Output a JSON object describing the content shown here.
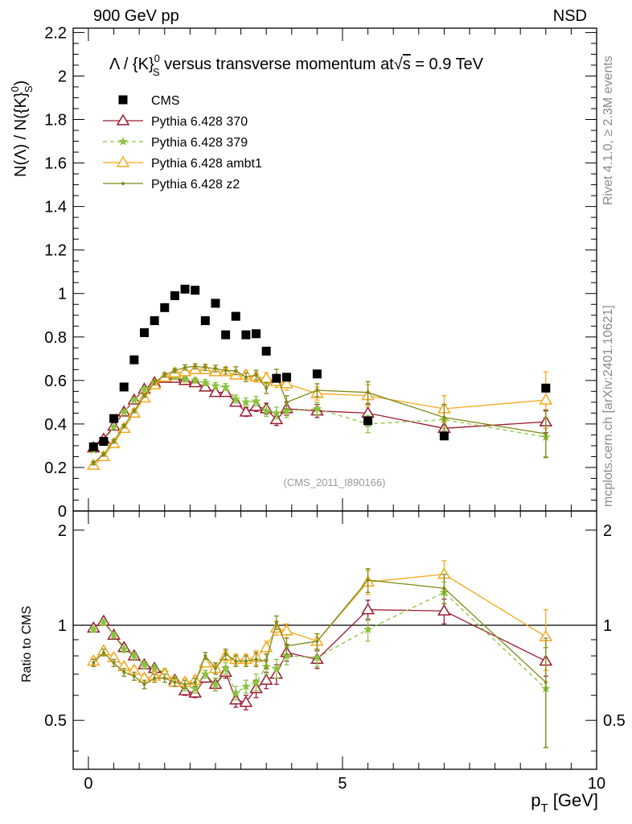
{
  "header": {
    "left": "900 GeV pp",
    "right": "NSD"
  },
  "side_labels": {
    "rivet": "Rivet 4.1.0, ≥ 2.3M events",
    "mcplots": "mcplots.cern.ch [arXiv:2401.10621]"
  },
  "chart_data": {
    "type": "scatter",
    "title": "Λ / {K}S0 versus transverse momentum at √s = 0.9 TeV",
    "title_parts": {
      "lead": "Λ / {K}",
      "sup": "0",
      "sub": "S",
      "mid": " versus transverse momentum at",
      "root": "s",
      "tail": " = 0.9 TeV"
    },
    "ylabel": "N(Λ) / N({K}S0)",
    "ylabel_parts": {
      "lead": "N(Λ)  /  N({K}",
      "sup": "0",
      "sub": "S",
      "tail": ")"
    },
    "xlabel": "pT [GeV]",
    "xlabel_parts": {
      "main": "p",
      "sub": "T",
      "unit": " [GeV]"
    },
    "watermark": "(CMS_2011_I890166)",
    "ratio_ylabel": "Ratio to CMS",
    "xlim": [
      -0.3,
      10
    ],
    "ylim": [
      0,
      2.22
    ],
    "ratio_ylim": [
      0.35,
      2.3
    ],
    "x_ticks": [
      0,
      5,
      10
    ],
    "y_ticks": [
      0,
      0.2,
      0.4,
      0.6,
      0.8,
      1,
      1.2,
      1.4,
      1.6,
      1.8,
      2,
      2.2
    ],
    "ratio_ticks": [
      0.5,
      1,
      2
    ],
    "x": [
      0.1,
      0.3,
      0.5,
      0.7,
      0.9,
      1.1,
      1.3,
      1.5,
      1.7,
      1.9,
      2.1,
      2.3,
      2.5,
      2.7,
      2.9,
      3.1,
      3.3,
      3.5,
      3.7,
      3.9,
      4.5,
      5.5,
      7.0,
      9.0
    ],
    "data": {
      "name": "CMS",
      "values": [
        0.295,
        0.32,
        0.425,
        0.57,
        0.695,
        0.82,
        0.875,
        0.935,
        0.99,
        1.02,
        1.015,
        0.875,
        0.955,
        0.81,
        0.895,
        0.81,
        0.815,
        0.735,
        0.61,
        0.615,
        0.63,
        0.415,
        0.345,
        0.565
      ]
    },
    "series": [
      {
        "name": "Pythia 6.428 370",
        "color": "#9b1b30",
        "marker": "triangle-open",
        "dash": "",
        "values": [
          0.29,
          0.33,
          0.39,
          0.455,
          0.51,
          0.56,
          0.59,
          0.61,
          0.61,
          0.6,
          0.59,
          0.57,
          0.545,
          0.545,
          0.5,
          0.455,
          0.48,
          0.47,
          0.42,
          0.47,
          0.46,
          0.45,
          0.38,
          0.41
        ],
        "errors": [
          0.008,
          0.008,
          0.008,
          0.008,
          0.008,
          0.008,
          0.01,
          0.01,
          0.01,
          0.012,
          0.012,
          0.014,
          0.015,
          0.016,
          0.018,
          0.02,
          0.022,
          0.025,
          0.027,
          0.03,
          0.03,
          0.04,
          0.04,
          0.05
        ],
        "ratio": [
          0.98,
          1.03,
          0.93,
          0.85,
          0.8,
          0.75,
          0.73,
          0.7,
          0.67,
          0.62,
          0.61,
          0.68,
          0.65,
          0.71,
          0.58,
          0.57,
          0.63,
          0.67,
          0.7,
          0.82,
          0.78,
          1.12,
          1.11,
          0.77
        ],
        "ratio_errors": [
          0.02,
          0.02,
          0.02,
          0.02,
          0.02,
          0.02,
          0.02,
          0.02,
          0.02,
          0.02,
          0.02,
          0.02,
          0.03,
          0.03,
          0.03,
          0.03,
          0.04,
          0.04,
          0.05,
          0.05,
          0.05,
          0.08,
          0.1,
          0.08
        ]
      },
      {
        "name": "Pythia 6.428 379",
        "color": "#8ac43f",
        "marker": "star",
        "dash": "5,4",
        "values": [
          0.28,
          0.32,
          0.385,
          0.455,
          0.51,
          0.56,
          0.59,
          0.61,
          0.615,
          0.605,
          0.6,
          0.59,
          0.575,
          0.57,
          0.515,
          0.5,
          0.505,
          0.46,
          0.45,
          0.46,
          0.47,
          0.4,
          0.42,
          0.34
        ],
        "errors": [
          0.008,
          0.008,
          0.008,
          0.008,
          0.008,
          0.008,
          0.01,
          0.01,
          0.01,
          0.012,
          0.012,
          0.014,
          0.015,
          0.016,
          0.018,
          0.02,
          0.022,
          0.025,
          0.027,
          0.03,
          0.03,
          0.04,
          0.04,
          0.09
        ],
        "ratio": [
          0.97,
          1.02,
          0.93,
          0.84,
          0.8,
          0.75,
          0.73,
          0.71,
          0.67,
          0.64,
          0.63,
          0.7,
          0.65,
          0.73,
          0.61,
          0.64,
          0.66,
          0.74,
          0.73,
          0.8,
          0.79,
          0.97,
          1.27,
          0.63
        ],
        "ratio_errors": [
          0.02,
          0.02,
          0.02,
          0.02,
          0.02,
          0.02,
          0.02,
          0.02,
          0.02,
          0.02,
          0.02,
          0.02,
          0.03,
          0.03,
          0.03,
          0.03,
          0.04,
          0.04,
          0.05,
          0.05,
          0.05,
          0.08,
          0.1,
          0.22
        ]
      },
      {
        "name": "Pythia 6.428 ambt1",
        "color": "#f5a81c",
        "marker": "triangle-open",
        "dash": "",
        "values": [
          0.21,
          0.25,
          0.31,
          0.38,
          0.45,
          0.52,
          0.58,
          0.615,
          0.635,
          0.64,
          0.65,
          0.65,
          0.64,
          0.64,
          0.625,
          0.625,
          0.615,
          0.61,
          0.595,
          0.585,
          0.54,
          0.53,
          0.47,
          0.51
        ],
        "errors": [
          0.008,
          0.008,
          0.008,
          0.008,
          0.008,
          0.008,
          0.01,
          0.01,
          0.01,
          0.012,
          0.012,
          0.014,
          0.015,
          0.016,
          0.018,
          0.02,
          0.022,
          0.025,
          0.027,
          0.03,
          0.03,
          0.05,
          0.06,
          0.13
        ],
        "ratio": [
          0.77,
          0.83,
          0.79,
          0.74,
          0.72,
          0.68,
          0.69,
          0.7,
          0.66,
          0.66,
          0.67,
          0.76,
          0.73,
          0.8,
          0.78,
          0.78,
          0.79,
          0.85,
          0.98,
          0.96,
          0.89,
          1.37,
          1.45,
          0.92
        ],
        "ratio_errors": [
          0.02,
          0.02,
          0.02,
          0.02,
          0.02,
          0.02,
          0.02,
          0.02,
          0.02,
          0.02,
          0.02,
          0.02,
          0.03,
          0.03,
          0.03,
          0.03,
          0.04,
          0.04,
          0.05,
          0.05,
          0.05,
          0.12,
          0.15,
          0.2
        ]
      },
      {
        "name": "Pythia 6.428 z2",
        "color": "#7f8a1a",
        "marker": "dot",
        "dash": "",
        "values": [
          0.22,
          0.26,
          0.32,
          0.39,
          0.46,
          0.53,
          0.59,
          0.625,
          0.645,
          0.66,
          0.665,
          0.66,
          0.655,
          0.645,
          0.645,
          0.615,
          0.625,
          0.565,
          0.625,
          0.5,
          0.555,
          0.545,
          0.43,
          0.355
        ],
        "errors": [
          0.008,
          0.008,
          0.008,
          0.008,
          0.008,
          0.008,
          0.01,
          0.01,
          0.01,
          0.012,
          0.012,
          0.014,
          0.015,
          0.016,
          0.018,
          0.02,
          0.022,
          0.025,
          0.027,
          0.03,
          0.03,
          0.05,
          0.06,
          0.11
        ],
        "ratio": [
          0.76,
          0.82,
          0.76,
          0.71,
          0.69,
          0.65,
          0.68,
          0.68,
          0.66,
          0.65,
          0.66,
          0.8,
          0.73,
          0.81,
          0.77,
          0.77,
          0.78,
          0.77,
          1.02,
          0.86,
          0.89,
          1.39,
          1.31,
          0.66
        ],
        "ratio_errors": [
          0.02,
          0.02,
          0.02,
          0.02,
          0.02,
          0.02,
          0.02,
          0.02,
          0.02,
          0.02,
          0.02,
          0.02,
          0.03,
          0.03,
          0.03,
          0.03,
          0.04,
          0.04,
          0.05,
          0.05,
          0.05,
          0.12,
          0.14,
          0.25
        ]
      }
    ]
  }
}
